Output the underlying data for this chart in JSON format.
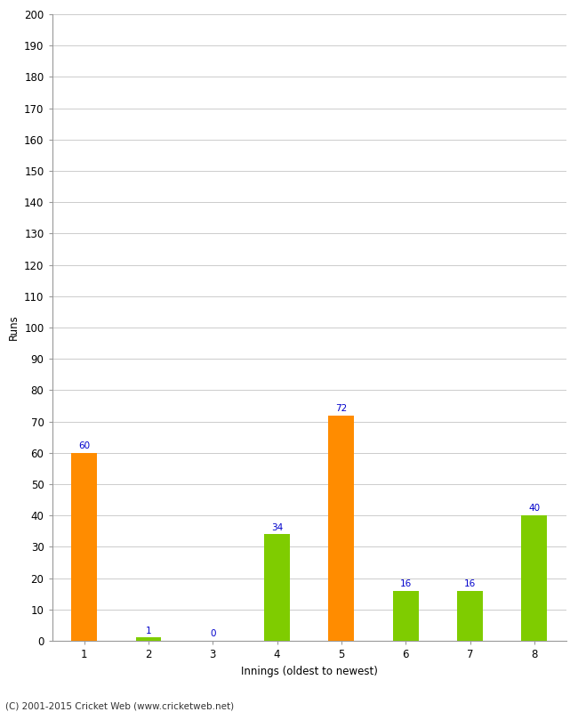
{
  "categories": [
    "1",
    "2",
    "3",
    "4",
    "5",
    "6",
    "7",
    "8"
  ],
  "values": [
    60,
    1,
    0,
    34,
    72,
    16,
    16,
    40
  ],
  "bar_colors": [
    "#FF8C00",
    "#7FCC00",
    "#7FCC00",
    "#7FCC00",
    "#FF8C00",
    "#7FCC00",
    "#7FCC00",
    "#7FCC00"
  ],
  "xlabel": "Innings (oldest to newest)",
  "ylabel": "Runs",
  "ylim": [
    0,
    200
  ],
  "yticks": [
    0,
    10,
    20,
    30,
    40,
    50,
    60,
    70,
    80,
    90,
    100,
    110,
    120,
    130,
    140,
    150,
    160,
    170,
    180,
    190,
    200
  ],
  "label_color": "#0000CC",
  "label_fontsize": 7.5,
  "footer": "(C) 2001-2015 Cricket Web (www.cricketweb.net)",
  "background_color": "#FFFFFF",
  "grid_color": "#CCCCCC",
  "bar_width": 0.4
}
